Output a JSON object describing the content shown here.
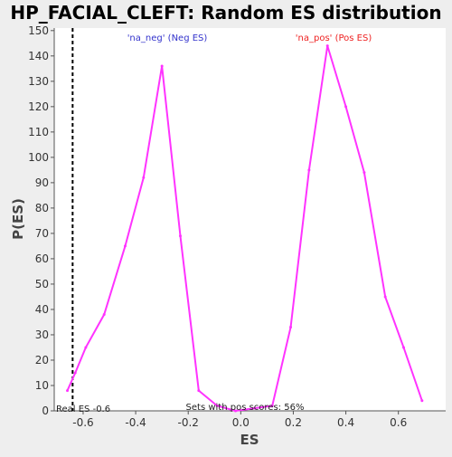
{
  "chart_data": {
    "type": "line",
    "title": "HP_FACIAL_CLEFT: Random ES distribution",
    "xlabel": "ES",
    "ylabel": "P(ES)",
    "xlim": [
      -0.71,
      0.78
    ],
    "ylim": [
      0,
      151
    ],
    "x_ticks": [
      "-0.6",
      "-0.4",
      "-0.2",
      "0.0",
      "0.2",
      "0.4",
      "0.6"
    ],
    "x_tick_values": [
      -0.6,
      -0.4,
      -0.2,
      0.0,
      0.2,
      0.4,
      0.6
    ],
    "y_ticks": [
      "0",
      "10",
      "20",
      "30",
      "40",
      "50",
      "60",
      "70",
      "80",
      "90",
      "100",
      "110",
      "120",
      "130",
      "140",
      "150"
    ],
    "y_tick_values": [
      0,
      10,
      20,
      30,
      40,
      50,
      60,
      70,
      80,
      90,
      100,
      110,
      120,
      130,
      140,
      150
    ],
    "line_color": "#ff33ff",
    "series": [
      {
        "x": [
          -0.66,
          -0.63,
          -0.59,
          -0.52,
          -0.44,
          -0.37,
          -0.3,
          -0.23,
          -0.16,
          -0.09,
          -0.02,
          0.05,
          0.12,
          0.19,
          0.26,
          0.33,
          0.4,
          0.47,
          0.55,
          0.62,
          0.69
        ],
        "y": [
          8,
          15,
          25,
          38,
          65,
          92,
          136,
          69,
          8,
          2,
          0,
          1,
          2,
          33,
          95,
          144,
          120,
          94,
          45,
          25,
          4
        ]
      }
    ],
    "annotations": {
      "neg_label": "'na_neg' (Neg ES)",
      "pos_label": "'na_pos' (Pos ES)",
      "neg_color": "#3333cc",
      "pos_color": "#ee2222",
      "real_es_label": "Real ES -0.6",
      "real_es_value": -0.64,
      "sets_label": "Sets with pos scores: 56%"
    }
  }
}
